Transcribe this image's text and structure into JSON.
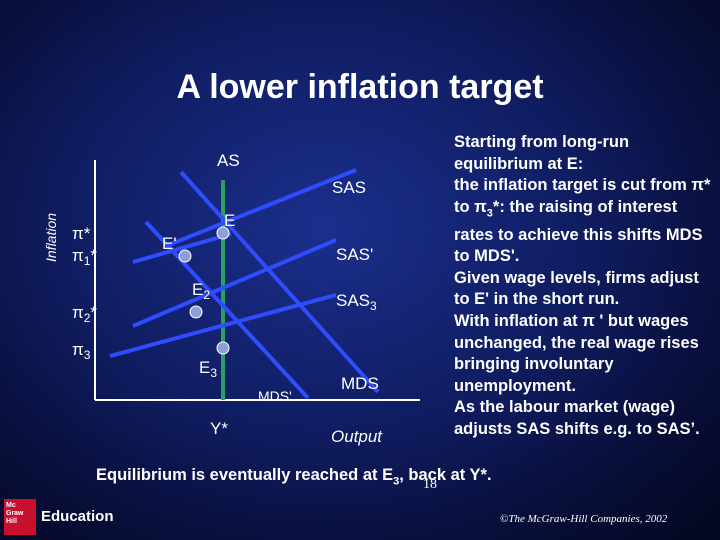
{
  "title": "A lower inflation target",
  "axis": {
    "y_label": "Inflation",
    "x_label": "Output"
  },
  "curves": {
    "as_label": "AS",
    "sas_label": "SAS",
    "sas1_label": "SAS'",
    "sas3_label": "SAS",
    "sas3_sub": "3",
    "mds1_label": "MDS'",
    "mds_label": "MDS"
  },
  "points": {
    "e_label": "E",
    "e1_label": "E'",
    "e2_label": "E",
    "e2_sub": "2",
    "e3_label": "E",
    "e3_sub": "3"
  },
  "y_ticks": {
    "pi_star": "π*",
    "pi1_main": "π",
    "pi1_sub": "1",
    "pi1_star": "*",
    "pi2_main": "π",
    "pi2_sub": "2",
    "pi2_star": "*",
    "pi3_main": "π",
    "pi3_sub": "3"
  },
  "x_ticks": {
    "y_star": "Y*"
  },
  "side_text": {
    "p1_a": "Starting from long-run equilibrium at E:",
    "p1_b": "the inflation target is cut from π* to π",
    "p1_sub": "3",
    "p1_c": "*: the raising of interest rates to achieve this shifts MDS to MDS'.",
    "p2": "Given wage levels, firms adjust to E' in the short run.",
    "p3": "With inflation at π ' but wages unchanged, the real wage rises bringing involuntary unemployment.",
    "p4": "As the labour market (wage) adjusts SAS shifts e.g. to SAS’."
  },
  "bottom_caption": {
    "a": "Equilibrium is eventually reached at E",
    "sub": "3",
    "b": ", back at Y*."
  },
  "page_number": "18",
  "copyright": "©The McGraw-Hill Companies, 2002",
  "logo": {
    "mark_lines": [
      "Mc",
      "Graw",
      "Hill"
    ],
    "word": "Education"
  },
  "colors": {
    "background": "#101d62",
    "curve_blue": "#2f4cff",
    "as_line": "#27a062",
    "axis": "#ffffff",
    "point_fill": "#8ea0d8"
  }
}
